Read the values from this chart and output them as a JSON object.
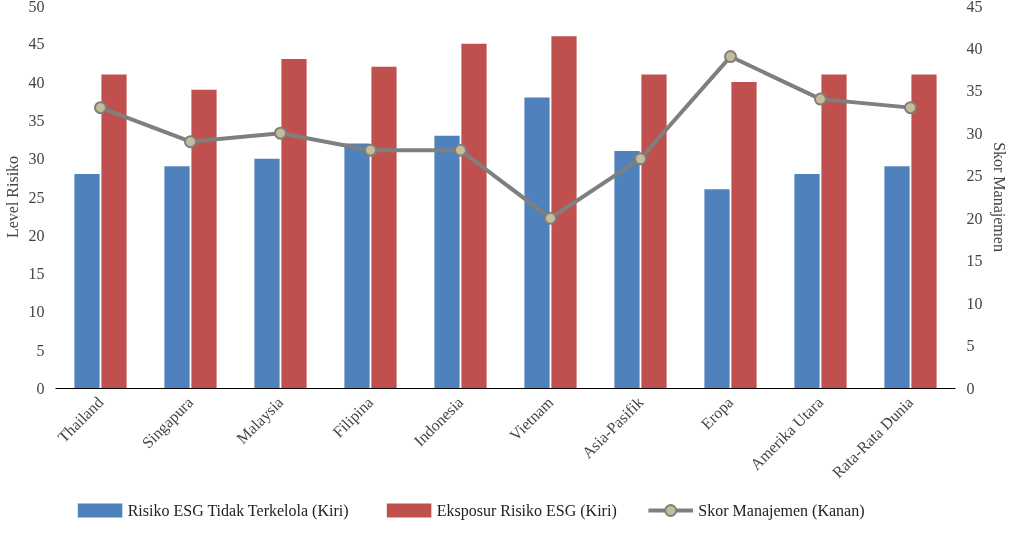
{
  "chart_data": {
    "type": "bar",
    "categories": [
      "Thailand",
      "Singapura",
      "Malaysia",
      "Filipina",
      "Indonesia",
      "Vietnam",
      "Asia-Pasifik",
      "Eropa",
      "Amerika Utara",
      "Rata-Rata Dunia"
    ],
    "ylabel": "Level Risiko",
    "y2label": "Skor Manajemen",
    "ylim": [
      0,
      50
    ],
    "yticks": [
      0,
      5,
      10,
      15,
      20,
      25,
      30,
      35,
      40,
      45,
      50
    ],
    "y2lim": [
      0,
      45
    ],
    "y2ticks": [
      0,
      5,
      10,
      15,
      20,
      25,
      30,
      35,
      40,
      45
    ],
    "grid": false,
    "legend": "bottom",
    "marker": "circle",
    "line_style": "solid",
    "series": [
      {
        "name": "Risiko ESG Tidak Terkelola (Kiri)",
        "color": "#4f81bd",
        "values": [
          28,
          29,
          30,
          32,
          33,
          38,
          31,
          26,
          28,
          29
        ]
      },
      {
        "name": "Eksposur Risiko ESG (Kiri)",
        "color": "#c0504d",
        "values": [
          41,
          39,
          43,
          42,
          45,
          46,
          41,
          40,
          41,
          41
        ]
      },
      {
        "name": "Skor Manajemen (Kanan)",
        "type": "line",
        "axis": "y2",
        "color": "#7f7f7f",
        "values": [
          33,
          29,
          30,
          28,
          28,
          20,
          27,
          39,
          34,
          33
        ]
      }
    ]
  }
}
